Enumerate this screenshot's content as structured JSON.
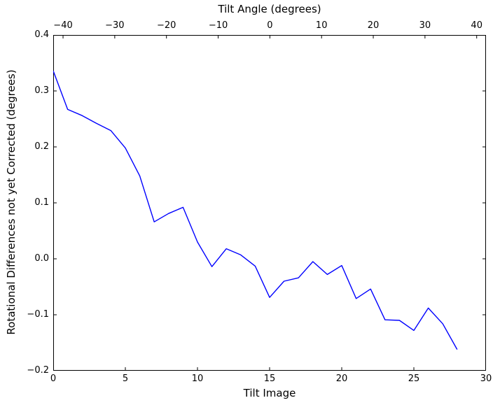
{
  "figure": {
    "background": "#ffffff",
    "axis_color": "#000000",
    "line_color": "#0000ff"
  },
  "chart_data": {
    "type": "line",
    "grid": false,
    "legend": "none",
    "top_axis": {
      "label": "Tilt Angle (degrees)",
      "range": [
        -41.9,
        41.8
      ],
      "tick_values": [
        -40,
        -30,
        -20,
        -10,
        0,
        10,
        20,
        30,
        40
      ],
      "tick_labels": [
        "−40",
        "−30",
        "−20",
        "−10",
        "0",
        "10",
        "20",
        "30",
        "40"
      ]
    },
    "bottom_axis": {
      "label": "Tilt Image",
      "range": [
        0,
        30
      ],
      "tick_values": [
        0,
        5,
        10,
        15,
        20,
        25,
        30
      ],
      "tick_labels": [
        "0",
        "5",
        "10",
        "15",
        "20",
        "25",
        "30"
      ]
    },
    "left_axis": {
      "label": "Rotational Differences not yet Corrected (degrees)",
      "range": [
        -0.2,
        0.4
      ],
      "tick_values": [
        0.4,
        0.3,
        0.2,
        0.1,
        0.0,
        -0.1,
        -0.2
      ],
      "tick_labels": [
        "0.4",
        "0.3",
        "0.2",
        "0.1",
        "0.0",
        "−0.1",
        "−0.2"
      ]
    },
    "series": [
      {
        "name": "rotational-difference-line",
        "color": "#0000ff",
        "x": [
          0,
          1,
          2,
          3,
          4,
          5,
          6,
          7,
          8,
          9,
          10,
          11,
          12,
          13,
          14,
          15,
          16,
          17,
          18,
          19,
          20,
          21,
          22,
          23,
          24,
          25,
          26,
          27,
          28
        ],
        "y": [
          0.336,
          0.267,
          0.256,
          0.242,
          0.229,
          0.198,
          0.148,
          0.066,
          0.081,
          0.092,
          0.03,
          -0.014,
          0.018,
          0.007,
          -0.013,
          -0.069,
          -0.04,
          -0.034,
          -0.005,
          -0.028,
          -0.012,
          -0.071,
          -0.054,
          -0.109,
          -0.11,
          -0.128,
          -0.088,
          -0.116,
          -0.162
        ]
      }
    ]
  }
}
